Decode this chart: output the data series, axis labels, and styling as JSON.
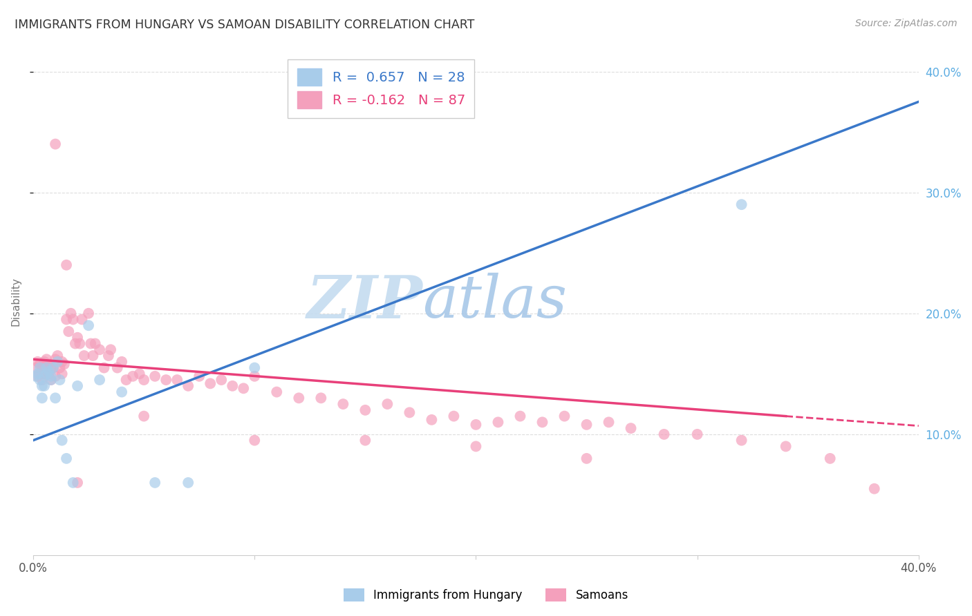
{
  "title": "IMMIGRANTS FROM HUNGARY VS SAMOAN DISABILITY CORRELATION CHART",
  "source": "Source: ZipAtlas.com",
  "ylabel": "Disability",
  "xlim": [
    0.0,
    0.4
  ],
  "ylim": [
    0.0,
    0.42
  ],
  "blue_R": 0.657,
  "blue_N": 28,
  "pink_R": -0.162,
  "pink_N": 87,
  "blue_color": "#A8CCEA",
  "pink_color": "#F4A0BC",
  "blue_line_color": "#3A78C9",
  "pink_line_color": "#E8407A",
  "watermark_zip": "ZIP",
  "watermark_atlas": "atlas",
  "legend_label_blue": "Immigrants from Hungary",
  "legend_label_pink": "Samoans",
  "blue_line_x0": 0.0,
  "blue_line_y0": 0.095,
  "blue_line_x1": 0.4,
  "blue_line_y1": 0.375,
  "pink_line_x0": 0.0,
  "pink_line_y0": 0.162,
  "pink_line_x1": 0.34,
  "pink_line_y1": 0.115,
  "pink_line_dash_x0": 0.34,
  "pink_line_dash_y0": 0.115,
  "pink_line_dash_x1": 0.4,
  "pink_line_dash_y1": 0.107,
  "blue_points_x": [
    0.001,
    0.002,
    0.003,
    0.003,
    0.004,
    0.004,
    0.005,
    0.005,
    0.006,
    0.006,
    0.007,
    0.008,
    0.008,
    0.009,
    0.01,
    0.011,
    0.012,
    0.013,
    0.015,
    0.018,
    0.02,
    0.025,
    0.03,
    0.04,
    0.055,
    0.07,
    0.1,
    0.32
  ],
  "blue_points_y": [
    0.148,
    0.15,
    0.145,
    0.155,
    0.13,
    0.14,
    0.14,
    0.148,
    0.15,
    0.155,
    0.152,
    0.148,
    0.145,
    0.155,
    0.13,
    0.16,
    0.145,
    0.095,
    0.08,
    0.06,
    0.14,
    0.19,
    0.145,
    0.135,
    0.06,
    0.06,
    0.155,
    0.29
  ],
  "pink_points_x": [
    0.001,
    0.002,
    0.002,
    0.003,
    0.003,
    0.004,
    0.004,
    0.005,
    0.005,
    0.006,
    0.006,
    0.007,
    0.007,
    0.008,
    0.008,
    0.009,
    0.01,
    0.01,
    0.011,
    0.012,
    0.013,
    0.013,
    0.014,
    0.015,
    0.016,
    0.017,
    0.018,
    0.019,
    0.02,
    0.021,
    0.022,
    0.023,
    0.025,
    0.026,
    0.027,
    0.028,
    0.03,
    0.032,
    0.034,
    0.035,
    0.038,
    0.04,
    0.042,
    0.045,
    0.048,
    0.05,
    0.055,
    0.06,
    0.065,
    0.07,
    0.075,
    0.08,
    0.085,
    0.09,
    0.095,
    0.1,
    0.11,
    0.12,
    0.13,
    0.14,
    0.15,
    0.16,
    0.17,
    0.18,
    0.19,
    0.2,
    0.21,
    0.22,
    0.23,
    0.24,
    0.25,
    0.26,
    0.27,
    0.285,
    0.3,
    0.32,
    0.34,
    0.36,
    0.38,
    0.01,
    0.015,
    0.02,
    0.05,
    0.1,
    0.15,
    0.2,
    0.25
  ],
  "pink_points_y": [
    0.155,
    0.148,
    0.16,
    0.15,
    0.158,
    0.145,
    0.155,
    0.16,
    0.15,
    0.155,
    0.162,
    0.15,
    0.158,
    0.145,
    0.155,
    0.155,
    0.148,
    0.162,
    0.165,
    0.155,
    0.15,
    0.16,
    0.158,
    0.195,
    0.185,
    0.2,
    0.195,
    0.175,
    0.18,
    0.175,
    0.195,
    0.165,
    0.2,
    0.175,
    0.165,
    0.175,
    0.17,
    0.155,
    0.165,
    0.17,
    0.155,
    0.16,
    0.145,
    0.148,
    0.15,
    0.145,
    0.148,
    0.145,
    0.145,
    0.14,
    0.148,
    0.142,
    0.145,
    0.14,
    0.138,
    0.148,
    0.135,
    0.13,
    0.13,
    0.125,
    0.12,
    0.125,
    0.118,
    0.112,
    0.115,
    0.108,
    0.11,
    0.115,
    0.11,
    0.115,
    0.108,
    0.11,
    0.105,
    0.1,
    0.1,
    0.095,
    0.09,
    0.08,
    0.055,
    0.34,
    0.24,
    0.06,
    0.115,
    0.095,
    0.095,
    0.09,
    0.08
  ],
  "background_color": "#FFFFFF",
  "grid_color": "#DDDDDD"
}
